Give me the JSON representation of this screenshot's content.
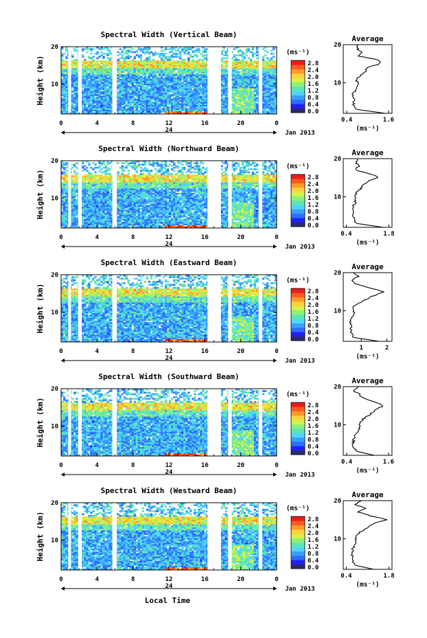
{
  "figure": {
    "xlabel": "Local Time",
    "date_label": "Jan 2013",
    "day_label": "24",
    "colorbar_unit": "(ms⁻¹)",
    "profile_title": "Average",
    "profile_unit": "(ms⁻¹)"
  },
  "colors": {
    "colormap": [
      "#2b2b6e",
      "#2020ff",
      "#2f6fff",
      "#3aa0ff",
      "#4fd6f5",
      "#5ee6b0",
      "#8cf07a",
      "#d8f04a",
      "#ffd23a",
      "#ff9a2a",
      "#ff5a1e",
      "#e81e1e"
    ]
  },
  "chart_data": [
    {
      "type": "heatmap",
      "title": "Spectral Width (Vertical Beam)",
      "ylabel": "Height (km)",
      "x_ticks": [
        "0",
        "4",
        "8",
        "12",
        "16",
        "20",
        "0"
      ],
      "y_ticks": [
        "10",
        "20"
      ],
      "xlim": [
        0,
        24
      ],
      "ylim": [
        2,
        20
      ],
      "data_gaps_hours": [
        [
          0.8,
          1.1
        ],
        [
          1.9,
          2.3
        ],
        [
          5.7,
          6.2
        ],
        [
          16.3,
          17.8
        ],
        [
          18.6,
          19.0
        ],
        [
          22.0,
          22.4
        ]
      ],
      "colorbar_ticks": [
        "2.8",
        "2.4",
        "2.0",
        "1.6",
        "1.2",
        "0.8",
        "0.4",
        "0.0"
      ],
      "profile": {
        "title": "Average",
        "x_ticks": [
          "0.4",
          "1.6"
        ],
        "xlim": [
          0.3,
          1.7
        ],
        "y_ticks": [
          "10",
          "20"
        ],
        "height_km": [
          2,
          3,
          4,
          5,
          6,
          7,
          8,
          9,
          10,
          11,
          12,
          13,
          14,
          15,
          16,
          17,
          18,
          19,
          20
        ],
        "width_ms": [
          1.5,
          0.7,
          0.6,
          0.62,
          0.6,
          0.58,
          0.65,
          0.72,
          0.7,
          0.68,
          0.8,
          0.95,
          1.0,
          1.35,
          1.3,
          0.75,
          0.8,
          0.7,
          0.72
        ]
      }
    },
    {
      "type": "heatmap",
      "title": "Spectral Width (Northward Beam)",
      "ylabel": "Height (km)",
      "x_ticks": [
        "0",
        "4",
        "8",
        "12",
        "16",
        "20",
        "0"
      ],
      "y_ticks": [
        "10",
        "20"
      ],
      "xlim": [
        0,
        24
      ],
      "ylim": [
        2,
        20
      ],
      "data_gaps_hours": [
        [
          0.8,
          1.1
        ],
        [
          1.9,
          2.3
        ],
        [
          5.7,
          6.2
        ],
        [
          16.3,
          17.8
        ],
        [
          18.6,
          19.0
        ],
        [
          22.0,
          22.4
        ]
      ],
      "colorbar_ticks": [
        "2.8",
        "2.4",
        "2.0",
        "1.6",
        "1.2",
        "0.8",
        "0.4",
        "0.0"
      ],
      "profile": {
        "title": "Average",
        "x_ticks": [
          "0.4",
          "1.8"
        ],
        "xlim": [
          0.3,
          1.9
        ],
        "y_ticks": [
          "10",
          "20"
        ],
        "height_km": [
          2,
          3,
          4,
          5,
          6,
          7,
          8,
          9,
          10,
          11,
          12,
          13,
          14,
          15,
          16,
          17,
          18,
          19,
          20
        ],
        "width_ms": [
          1.6,
          0.75,
          0.65,
          0.62,
          0.62,
          0.6,
          0.65,
          0.72,
          0.7,
          0.72,
          0.85,
          0.95,
          1.1,
          1.45,
          1.2,
          0.7,
          0.8,
          0.72,
          0.75
        ]
      }
    },
    {
      "type": "heatmap",
      "title": "Spectral Width (Eastward Beam)",
      "ylabel": "Height (km)",
      "x_ticks": [
        "0",
        "4",
        "8",
        "12",
        "16",
        "20",
        "0"
      ],
      "y_ticks": [
        "10",
        "20"
      ],
      "xlim": [
        0,
        24
      ],
      "ylim": [
        2,
        20
      ],
      "data_gaps_hours": [
        [
          0.8,
          1.1
        ],
        [
          1.9,
          2.3
        ],
        [
          5.7,
          6.2
        ],
        [
          16.3,
          17.8
        ],
        [
          18.6,
          19.0
        ],
        [
          22.0,
          22.4
        ]
      ],
      "colorbar_ticks": [
        "2.8",
        "2.4",
        "2.0",
        "1.6",
        "1.2",
        "0.8",
        "0.4",
        "0.0"
      ],
      "profile": {
        "title": "Average",
        "x_ticks": [
          "1",
          "2"
        ],
        "xlim": [
          0.3,
          2.2
        ],
        "y_ticks": [
          "10",
          "20"
        ],
        "height_km": [
          2,
          3,
          4,
          5,
          6,
          7,
          8,
          9,
          10,
          11,
          12,
          13,
          14,
          15,
          16,
          17,
          18,
          19,
          20
        ],
        "width_ms": [
          1.7,
          0.7,
          0.62,
          0.6,
          0.6,
          0.58,
          0.62,
          0.7,
          0.72,
          0.7,
          0.9,
          1.2,
          1.5,
          1.9,
          1.3,
          0.8,
          0.6,
          0.9,
          0.7
        ]
      }
    },
    {
      "type": "heatmap",
      "title": "Spectral Width (Southward Beam)",
      "ylabel": "Height (km)",
      "x_ticks": [
        "0",
        "4",
        "8",
        "12",
        "16",
        "20",
        "0"
      ],
      "y_ticks": [
        "10",
        "20"
      ],
      "xlim": [
        0,
        24
      ],
      "ylim": [
        2,
        20
      ],
      "data_gaps_hours": [
        [
          0.8,
          1.1
        ],
        [
          1.9,
          2.3
        ],
        [
          5.7,
          6.2
        ],
        [
          16.3,
          17.8
        ],
        [
          18.6,
          19.0
        ],
        [
          22.0,
          22.4
        ]
      ],
      "colorbar_ticks": [
        "2.8",
        "2.4",
        "2.0",
        "1.6",
        "1.2",
        "0.8",
        "0.4",
        "0.0"
      ],
      "profile": {
        "title": "Average",
        "x_ticks": [
          "0.4",
          "1.6"
        ],
        "xlim": [
          0.3,
          1.7
        ],
        "y_ticks": [
          "10",
          "20"
        ],
        "height_km": [
          2,
          3,
          4,
          5,
          6,
          7,
          8,
          9,
          10,
          11,
          12,
          13,
          14,
          15,
          16,
          17,
          18,
          19,
          20
        ],
        "width_ms": [
          1.2,
          0.7,
          0.62,
          0.58,
          0.6,
          0.62,
          0.68,
          0.75,
          0.78,
          0.8,
          0.95,
          1.1,
          1.25,
          1.45,
          1.2,
          0.9,
          0.75,
          0.6,
          0.72
        ]
      }
    },
    {
      "type": "heatmap",
      "title": "Spectral Width (Westward Beam)",
      "ylabel": "Height (km)",
      "x_ticks": [
        "0",
        "4",
        "8",
        "12",
        "16",
        "20",
        "0"
      ],
      "y_ticks": [
        "10",
        "20"
      ],
      "xlim": [
        0,
        24
      ],
      "ylim": [
        2,
        20
      ],
      "data_gaps_hours": [
        [
          0.8,
          1.1
        ],
        [
          1.9,
          2.3
        ],
        [
          5.7,
          6.2
        ],
        [
          16.3,
          17.8
        ],
        [
          18.6,
          19.0
        ],
        [
          22.0,
          22.4
        ]
      ],
      "colorbar_ticks": [
        "2.8",
        "2.4",
        "2.0",
        "1.6",
        "1.2",
        "0.8",
        "0.4",
        "0.0"
      ],
      "profile": {
        "title": "Average",
        "x_ticks": [
          "0.4",
          "1.8"
        ],
        "xlim": [
          0.3,
          1.9
        ],
        "y_ticks": [
          "10",
          "20"
        ],
        "height_km": [
          2,
          3,
          4,
          5,
          6,
          7,
          8,
          9,
          10,
          11,
          12,
          13,
          14,
          15,
          16,
          17,
          18,
          19,
          20
        ],
        "width_ms": [
          1.3,
          0.72,
          0.62,
          0.6,
          0.6,
          0.6,
          0.65,
          0.75,
          0.7,
          0.72,
          0.9,
          1.1,
          1.3,
          1.75,
          1.2,
          0.8,
          1.0,
          0.7,
          0.9
        ]
      }
    }
  ]
}
